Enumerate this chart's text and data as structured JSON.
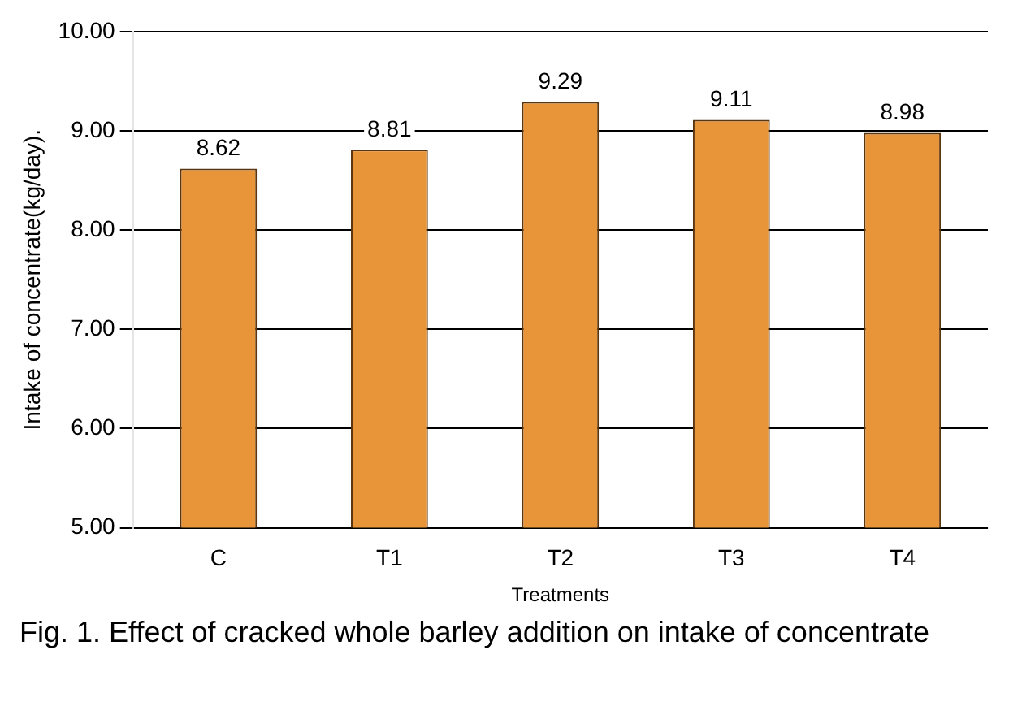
{
  "chart_data": {
    "type": "bar",
    "xlabel": "Treatments",
    "ylabel": "Intake of concentrate(kg/day).",
    "categories": [
      "C",
      "T1",
      "T2",
      "T3",
      "T4"
    ],
    "values": [
      8.62,
      8.81,
      9.29,
      9.11,
      8.98
    ],
    "color": "#e8953a",
    "ylim": [
      5,
      10
    ],
    "yticks": [
      {
        "value": 5,
        "label": "5.00"
      },
      {
        "value": 6,
        "label": "6.00"
      },
      {
        "value": 7,
        "label": "7.00"
      },
      {
        "value": 8,
        "label": "8.00"
      },
      {
        "value": 9,
        "label": "9.00"
      },
      {
        "value": 10,
        "label": "10.00"
      }
    ],
    "grid": "y",
    "legend": false,
    "data_labels": true,
    "annotations": [
      "Fig. 1. Effect of cracked whole barley addition on intake of concentrate"
    ]
  }
}
